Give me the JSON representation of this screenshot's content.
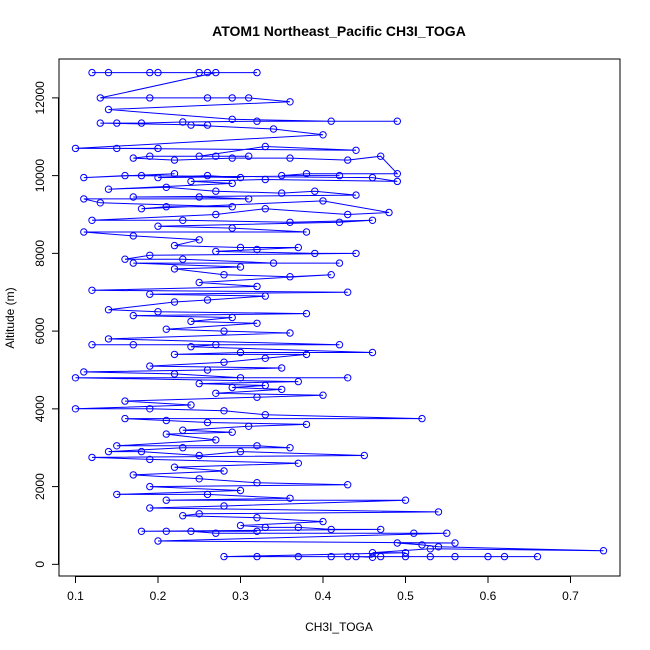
{
  "chart_data": {
    "type": "line",
    "title": "ATOM1 Northeast_Pacific CH3I_TOGA",
    "xlabel": "CH3I_TOGA",
    "ylabel": "Altitude (m)",
    "xlim": [
      0.08,
      0.76
    ],
    "ylim": [
      -300,
      13000
    ],
    "xticks": [
      "0.1",
      "0.2",
      "0.3",
      "0.4",
      "0.5",
      "0.6",
      "0.7"
    ],
    "yticks": [
      "0",
      "2000",
      "4000",
      "6000",
      "8000",
      "10000",
      "12000"
    ],
    "grid": false,
    "marker": "open-circle",
    "series_color": "#0000ff",
    "series": [
      {
        "points": [
          [
            0.12,
            12650
          ],
          [
            0.2,
            12650
          ],
          [
            0.25,
            12650
          ],
          [
            0.32,
            12650
          ],
          [
            0.26,
            12650
          ],
          [
            0.14,
            12650
          ],
          [
            0.19,
            12650
          ],
          [
            0.27,
            12650
          ],
          [
            0.13,
            12000
          ],
          [
            0.29,
            12000
          ],
          [
            0.26,
            12000
          ],
          [
            0.19,
            12000
          ],
          [
            0.31,
            12000
          ],
          [
            0.36,
            11900
          ],
          [
            0.14,
            11700
          ],
          [
            0.29,
            11450
          ],
          [
            0.41,
            11400
          ],
          [
            0.49,
            11400
          ],
          [
            0.32,
            11400
          ],
          [
            0.23,
            11380
          ],
          [
            0.18,
            11350
          ],
          [
            0.15,
            11350
          ],
          [
            0.13,
            11350
          ],
          [
            0.26,
            11300
          ],
          [
            0.24,
            11300
          ],
          [
            0.34,
            11200
          ],
          [
            0.4,
            11050
          ],
          [
            0.1,
            10700
          ],
          [
            0.2,
            10700
          ],
          [
            0.15,
            10700
          ],
          [
            0.44,
            10650
          ],
          [
            0.33,
            10750
          ],
          [
            0.25,
            10500
          ],
          [
            0.31,
            10500
          ],
          [
            0.27,
            10500
          ],
          [
            0.19,
            10500
          ],
          [
            0.17,
            10450
          ],
          [
            0.22,
            10400
          ],
          [
            0.29,
            10450
          ],
          [
            0.36,
            10450
          ],
          [
            0.43,
            10400
          ],
          [
            0.47,
            10500
          ],
          [
            0.49,
            10050
          ],
          [
            0.38,
            10050
          ],
          [
            0.35,
            10000
          ],
          [
            0.42,
            10000
          ],
          [
            0.2,
            9950
          ],
          [
            0.26,
            10000
          ],
          [
            0.3,
            9950
          ],
          [
            0.18,
            10000
          ],
          [
            0.22,
            10050
          ],
          [
            0.11,
            9950
          ],
          [
            0.16,
            10000
          ],
          [
            0.46,
            9950
          ],
          [
            0.49,
            9850
          ],
          [
            0.33,
            9900
          ],
          [
            0.24,
            9850
          ],
          [
            0.29,
            9800
          ],
          [
            0.14,
            9650
          ],
          [
            0.21,
            9700
          ],
          [
            0.27,
            9600
          ],
          [
            0.35,
            9550
          ],
          [
            0.39,
            9600
          ],
          [
            0.44,
            9500
          ],
          [
            0.17,
            9450
          ],
          [
            0.25,
            9450
          ],
          [
            0.31,
            9400
          ],
          [
            0.11,
            9400
          ],
          [
            0.13,
            9300
          ],
          [
            0.29,
            9200
          ],
          [
            0.21,
            9200
          ],
          [
            0.18,
            9150
          ],
          [
            0.4,
            9350
          ],
          [
            0.48,
            9050
          ],
          [
            0.43,
            9000
          ],
          [
            0.33,
            9150
          ],
          [
            0.27,
            9000
          ],
          [
            0.12,
            8850
          ],
          [
            0.23,
            8850
          ],
          [
            0.36,
            8800
          ],
          [
            0.46,
            8850
          ],
          [
            0.42,
            8800
          ],
          [
            0.2,
            8700
          ],
          [
            0.29,
            8650
          ],
          [
            0.38,
            8550
          ],
          [
            0.11,
            8550
          ],
          [
            0.17,
            8450
          ],
          [
            0.25,
            8350
          ],
          [
            0.22,
            8200
          ],
          [
            0.3,
            8150
          ],
          [
            0.37,
            8150
          ],
          [
            0.32,
            8100
          ],
          [
            0.27,
            8050
          ],
          [
            0.39,
            8000
          ],
          [
            0.44,
            8000
          ],
          [
            0.19,
            7950
          ],
          [
            0.16,
            7850
          ],
          [
            0.23,
            7850
          ],
          [
            0.34,
            7750
          ],
          [
            0.42,
            7750
          ],
          [
            0.17,
            7750
          ],
          [
            0.3,
            7650
          ],
          [
            0.22,
            7600
          ],
          [
            0.28,
            7450
          ],
          [
            0.36,
            7400
          ],
          [
            0.41,
            7450
          ],
          [
            0.25,
            7250
          ],
          [
            0.32,
            7150
          ],
          [
            0.12,
            7050
          ],
          [
            0.43,
            7000
          ],
          [
            0.19,
            6950
          ],
          [
            0.33,
            6900
          ],
          [
            0.26,
            6800
          ],
          [
            0.22,
            6750
          ],
          [
            0.14,
            6550
          ],
          [
            0.2,
            6500
          ],
          [
            0.38,
            6450
          ],
          [
            0.17,
            6400
          ],
          [
            0.29,
            6350
          ],
          [
            0.24,
            6250
          ],
          [
            0.32,
            6200
          ],
          [
            0.21,
            6050
          ],
          [
            0.28,
            6000
          ],
          [
            0.36,
            5950
          ],
          [
            0.14,
            5800
          ],
          [
            0.42,
            5650
          ],
          [
            0.17,
            5650
          ],
          [
            0.12,
            5650
          ],
          [
            0.27,
            5650
          ],
          [
            0.24,
            5600
          ],
          [
            0.46,
            5450
          ],
          [
            0.3,
            5450
          ],
          [
            0.22,
            5400
          ],
          [
            0.38,
            5400
          ],
          [
            0.33,
            5300
          ],
          [
            0.28,
            5200
          ],
          [
            0.19,
            5100
          ],
          [
            0.35,
            5050
          ],
          [
            0.26,
            5000
          ],
          [
            0.11,
            4950
          ],
          [
            0.22,
            4900
          ],
          [
            0.3,
            4800
          ],
          [
            0.43,
            4800
          ],
          [
            0.1,
            4800
          ],
          [
            0.37,
            4700
          ],
          [
            0.25,
            4650
          ],
          [
            0.33,
            4600
          ],
          [
            0.29,
            4550
          ],
          [
            0.35,
            4500
          ],
          [
            0.27,
            4400
          ],
          [
            0.4,
            4350
          ],
          [
            0.32,
            4300
          ],
          [
            0.16,
            4200
          ],
          [
            0.24,
            4100
          ],
          [
            0.1,
            4000
          ],
          [
            0.19,
            4000
          ],
          [
            0.28,
            3950
          ],
          [
            0.33,
            3850
          ],
          [
            0.52,
            3750
          ],
          [
            0.16,
            3750
          ],
          [
            0.21,
            3700
          ],
          [
            0.26,
            3650
          ],
          [
            0.38,
            3600
          ],
          [
            0.31,
            3550
          ],
          [
            0.23,
            3450
          ],
          [
            0.29,
            3400
          ],
          [
            0.21,
            3350
          ],
          [
            0.27,
            3200
          ],
          [
            0.15,
            3050
          ],
          [
            0.32,
            3050
          ],
          [
            0.36,
            3000
          ],
          [
            0.23,
            3000
          ],
          [
            0.14,
            2900
          ],
          [
            0.18,
            2900
          ],
          [
            0.25,
            2800
          ],
          [
            0.3,
            2900
          ],
          [
            0.45,
            2800
          ],
          [
            0.12,
            2750
          ],
          [
            0.19,
            2700
          ],
          [
            0.37,
            2600
          ],
          [
            0.22,
            2500
          ],
          [
            0.28,
            2400
          ],
          [
            0.17,
            2300
          ],
          [
            0.25,
            2200
          ],
          [
            0.32,
            2100
          ],
          [
            0.43,
            2050
          ],
          [
            0.19,
            2000
          ],
          [
            0.3,
            1900
          ],
          [
            0.15,
            1800
          ],
          [
            0.26,
            1800
          ],
          [
            0.36,
            1700
          ],
          [
            0.21,
            1650
          ],
          [
            0.5,
            1650
          ],
          [
            0.28,
            1500
          ],
          [
            0.19,
            1450
          ],
          [
            0.54,
            1350
          ],
          [
            0.25,
            1300
          ],
          [
            0.23,
            1250
          ],
          [
            0.32,
            1200
          ],
          [
            0.4,
            1100
          ],
          [
            0.3,
            1000
          ],
          [
            0.33,
            950
          ],
          [
            0.37,
            950
          ],
          [
            0.41,
            900
          ],
          [
            0.47,
            900
          ],
          [
            0.18,
            850
          ],
          [
            0.21,
            850
          ],
          [
            0.32,
            850
          ],
          [
            0.24,
            850
          ],
          [
            0.27,
            800
          ],
          [
            0.51,
            800
          ],
          [
            0.55,
            800
          ],
          [
            0.2,
            600
          ],
          [
            0.56,
            550
          ],
          [
            0.49,
            550
          ],
          [
            0.52,
            500
          ],
          [
            0.54,
            450
          ],
          [
            0.74,
            350
          ],
          [
            0.53,
            400
          ],
          [
            0.46,
            300
          ],
          [
            0.5,
            300
          ],
          [
            0.28,
            200
          ],
          [
            0.32,
            200
          ],
          [
            0.37,
            200
          ],
          [
            0.41,
            200
          ],
          [
            0.43,
            200
          ],
          [
            0.47,
            200
          ],
          [
            0.5,
            200
          ],
          [
            0.53,
            200
          ],
          [
            0.56,
            200
          ],
          [
            0.6,
            200
          ],
          [
            0.62,
            200
          ],
          [
            0.66,
            200
          ],
          [
            0.44,
            200
          ],
          [
            0.46,
            180
          ]
        ]
      }
    ]
  }
}
